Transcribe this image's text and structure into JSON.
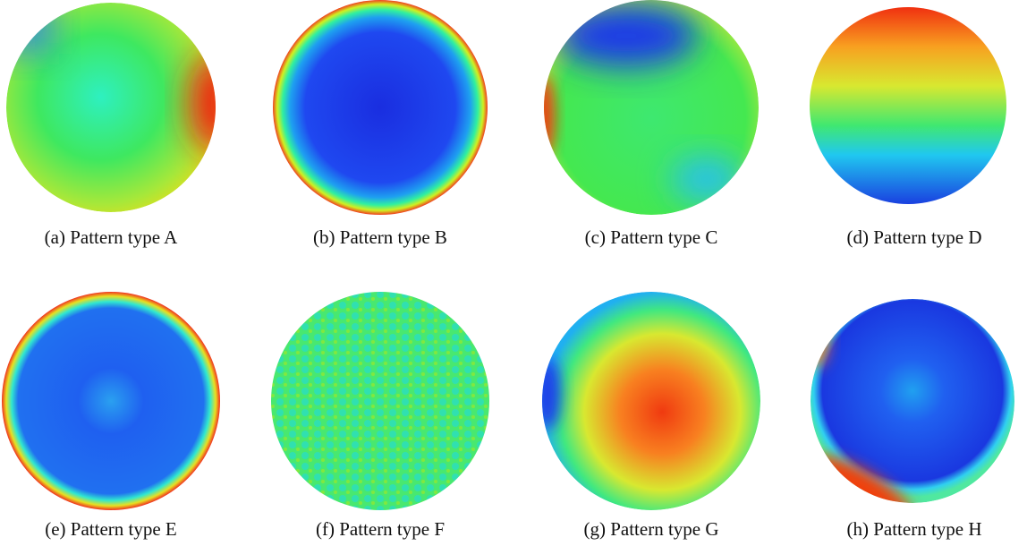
{
  "panels": [
    {
      "caption": "(a) Pattern type A"
    },
    {
      "caption": "(b) Pattern type B"
    },
    {
      "caption": "(c) Pattern type C"
    },
    {
      "caption": "(d) Pattern type D"
    },
    {
      "caption": "(e) Pattern type E"
    },
    {
      "caption": "(f) Pattern type F"
    },
    {
      "caption": "(g) Pattern type G"
    },
    {
      "caption": "(h) Pattern type H"
    }
  ]
}
